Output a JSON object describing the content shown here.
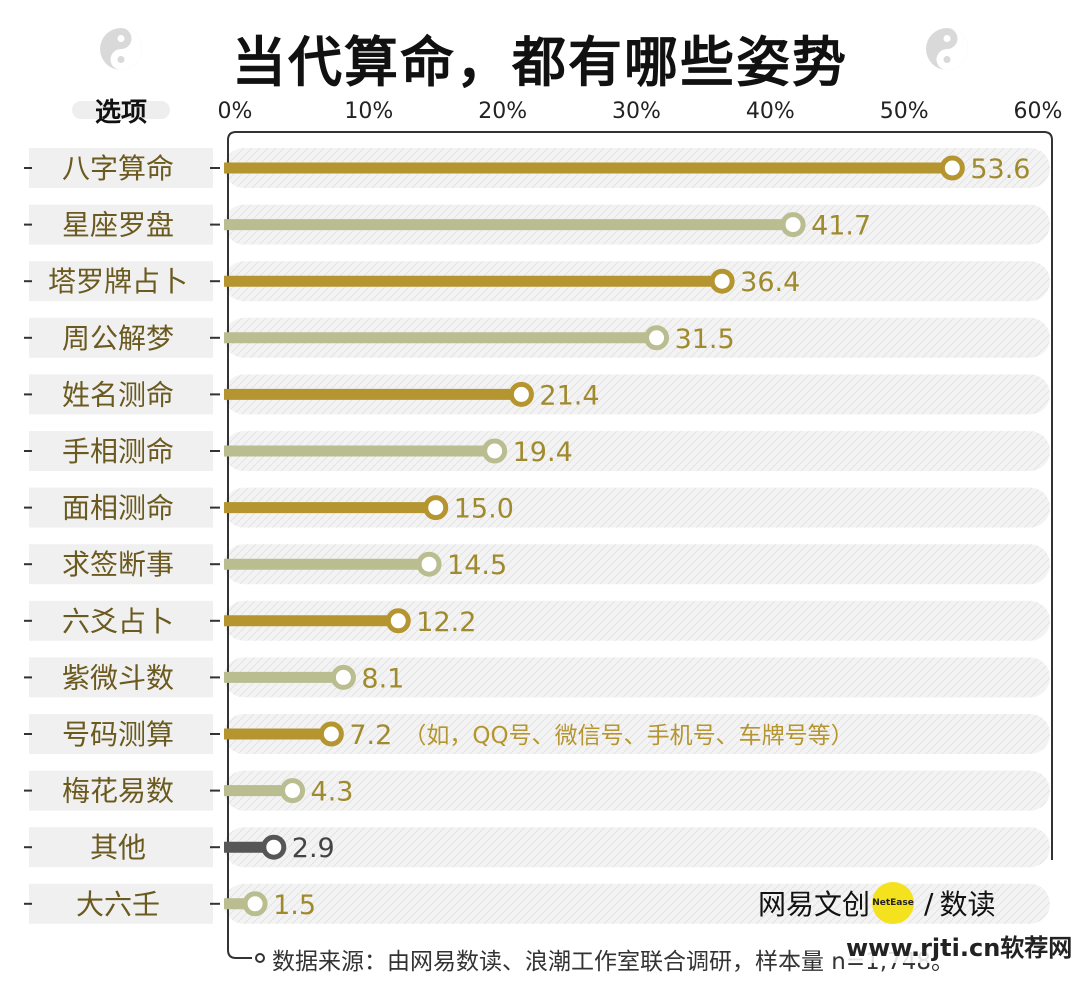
{
  "title": "当代算命，都有哪些姿势",
  "header_label": "选项",
  "source_note": "数据来源：由网易数读、浪潮工作室联合调研，样本量 n=1,748。",
  "watermark": "www.rjti.cn软荐网",
  "logo": {
    "brand": "网易文创",
    "badge": "NetEase",
    "separator": "/",
    "product": "数读"
  },
  "annotation_haoma": "（如，QQ号、微信号、手机号、车牌号等）",
  "colors": {
    "gold": "#b5952f",
    "sage": "#b9bd90",
    "gray": "#565656",
    "label_bg": "#f0f0f0",
    "track_bg": "#f1f1f1"
  },
  "chart_data": {
    "type": "bar",
    "categories": [
      "八字算命",
      "星座罗盘",
      "塔罗牌占卜",
      "周公解梦",
      "姓名测命",
      "手相测命",
      "面相测命",
      "求签断事",
      "六爻占卜",
      "紫微斗数",
      "号码测算",
      "梅花易数",
      "其他",
      "大六壬"
    ],
    "values": [
      53.6,
      41.7,
      36.4,
      31.5,
      21.4,
      19.4,
      15.0,
      14.5,
      12.2,
      8.1,
      7.2,
      4.3,
      2.9,
      1.5
    ],
    "value_labels": [
      "53.6",
      "41.7",
      "36.4",
      "31.5",
      "21.4",
      "19.4",
      "15.0",
      "14.5",
      "12.2",
      "8.1",
      "7.2",
      "4.3",
      "2.9",
      "1.5"
    ],
    "bar_colors": [
      "#b5952f",
      "#b9bd90",
      "#b5952f",
      "#b9bd90",
      "#b5952f",
      "#b9bd90",
      "#b5952f",
      "#b9bd90",
      "#b5952f",
      "#b9bd90",
      "#b5952f",
      "#b9bd90",
      "#565656",
      "#b9bd90"
    ],
    "ticks": [
      0,
      10,
      20,
      30,
      40,
      50,
      60
    ],
    "tick_labels": [
      "0%",
      "10%",
      "20%",
      "30%",
      "40%",
      "50%",
      "60%"
    ],
    "xlim": [
      0,
      60
    ],
    "legend": "none",
    "grid": false
  }
}
